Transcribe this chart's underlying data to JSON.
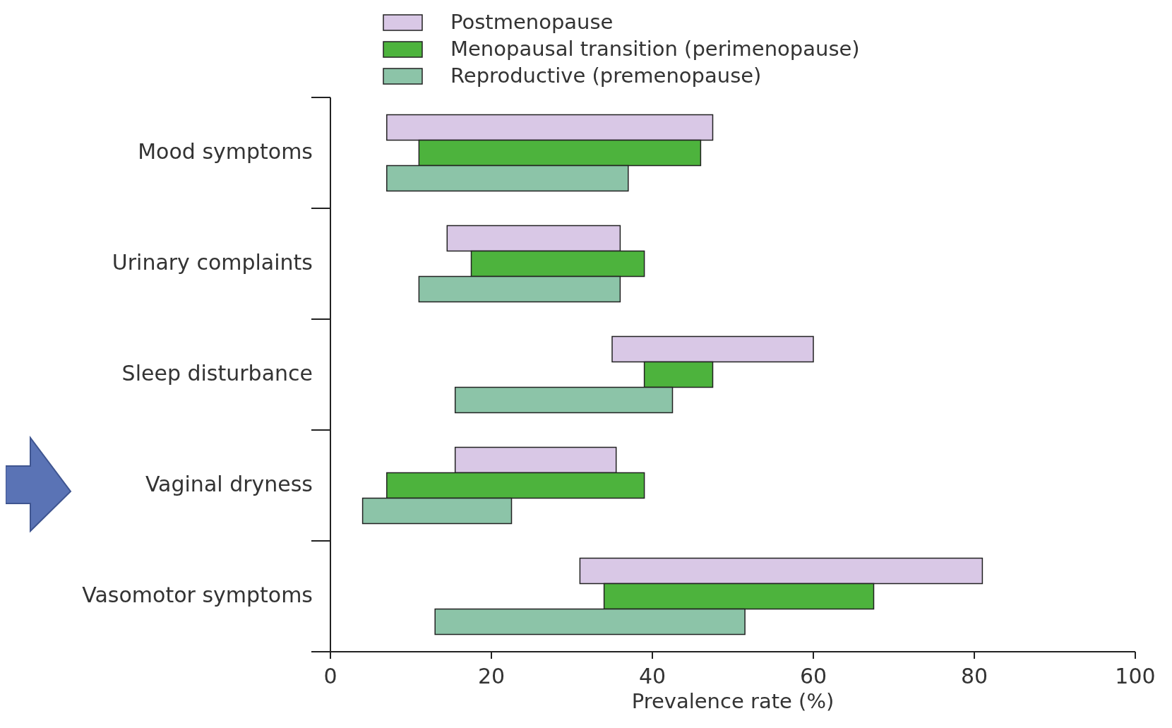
{
  "chart_data": {
    "type": "bar",
    "orientation": "horizontal",
    "xlabel": "Prevalence rate (%)",
    "categories": [
      "Mood symptoms",
      "Urinary complaints",
      "Sleep disturbance",
      "Vaginal dryness",
      "Vasomotor symptoms"
    ],
    "series": [
      {
        "name": "Postmenopause",
        "color": "#d9c8e6",
        "base": [
          7,
          14.5,
          35,
          15.5,
          31
        ],
        "values": [
          40.5,
          21.5,
          25,
          20,
          50
        ]
      },
      {
        "name": "Menopausal transition (perimenopause)",
        "color": "#4db33d",
        "base": [
          11,
          17.5,
          39,
          7,
          34
        ],
        "values": [
          35,
          21.5,
          8.5,
          32,
          33.5
        ]
      },
      {
        "name": "Reproductive (premenopause)",
        "color": "#8cc4a8",
        "base": [
          7,
          11,
          15.5,
          4,
          13
        ],
        "values": [
          30,
          25,
          27,
          18.5,
          38.5
        ]
      }
    ],
    "xlim": [
      0,
      100
    ],
    "xticks": [
      0,
      20,
      40,
      60,
      80,
      100
    ],
    "legend": "top",
    "grid": false
  }
}
